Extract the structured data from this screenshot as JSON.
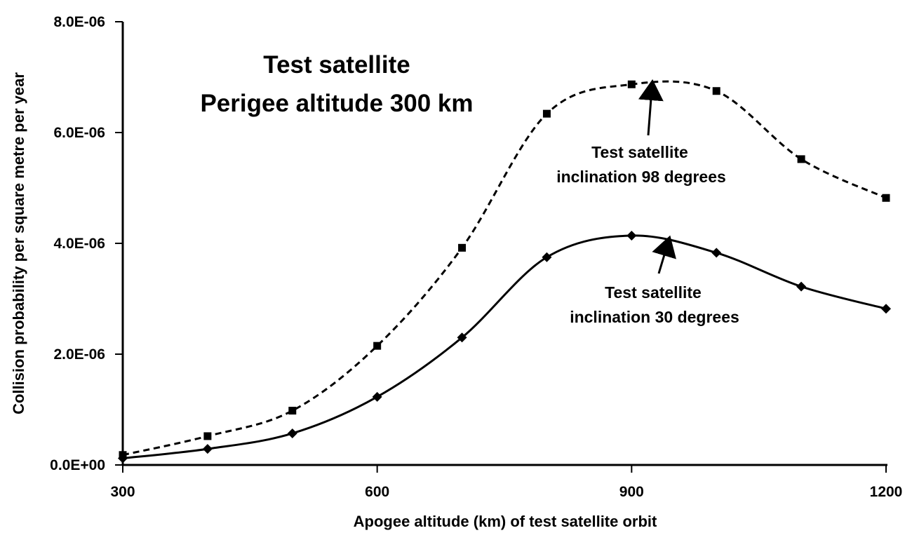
{
  "chart_data": {
    "type": "line",
    "title": [
      "Test satellite",
      "Perigee altitude 300 km"
    ],
    "xlabel": "Apogee altitude (km) of test satellite orbit",
    "ylabel": "Collision probability per square metre per year",
    "xlim": [
      300,
      1200
    ],
    "ylim": [
      0,
      8e-06
    ],
    "x_ticks": [
      300,
      600,
      900,
      1200
    ],
    "x_tick_labels": [
      "300",
      "600",
      "900",
      "1200"
    ],
    "y_ticks": [
      0,
      2e-06,
      4e-06,
      6e-06,
      8e-06
    ],
    "y_tick_labels": [
      "0.0E+00",
      "2.0E-06",
      "4.0E-06",
      "6.0E-06",
      "8.0E-06"
    ],
    "grid": false,
    "x": [
      300,
      400,
      500,
      600,
      700,
      800,
      900,
      1000,
      1100,
      1200
    ],
    "series": [
      {
        "line_style": "dashed",
        "marker": "square",
        "color": "#000000",
        "values": [
          1.8e-07,
          5.2e-07,
          9.8e-07,
          2.15e-06,
          3.92e-06,
          6.34e-06,
          6.87e-06,
          6.75e-06,
          5.52e-06,
          4.82e-06
        ]
      },
      {
        "line_style": "solid",
        "marker": "diamond",
        "color": "#000000",
        "values": [
          1.2e-07,
          2.9e-07,
          5.7e-07,
          1.23e-06,
          2.3e-06,
          3.75e-06,
          4.14e-06,
          3.83e-06,
          3.22e-06,
          2.82e-06
        ]
      }
    ],
    "annotations": [
      {
        "lines": [
          "Test satellite",
          "inclination 98 degrees"
        ],
        "target_x": 933,
        "target_y": 6.9e-06
      },
      {
        "lines": [
          "Test satellite",
          "inclination 30 degrees"
        ],
        "target_x": 951,
        "target_y": 4.1e-06
      }
    ]
  }
}
